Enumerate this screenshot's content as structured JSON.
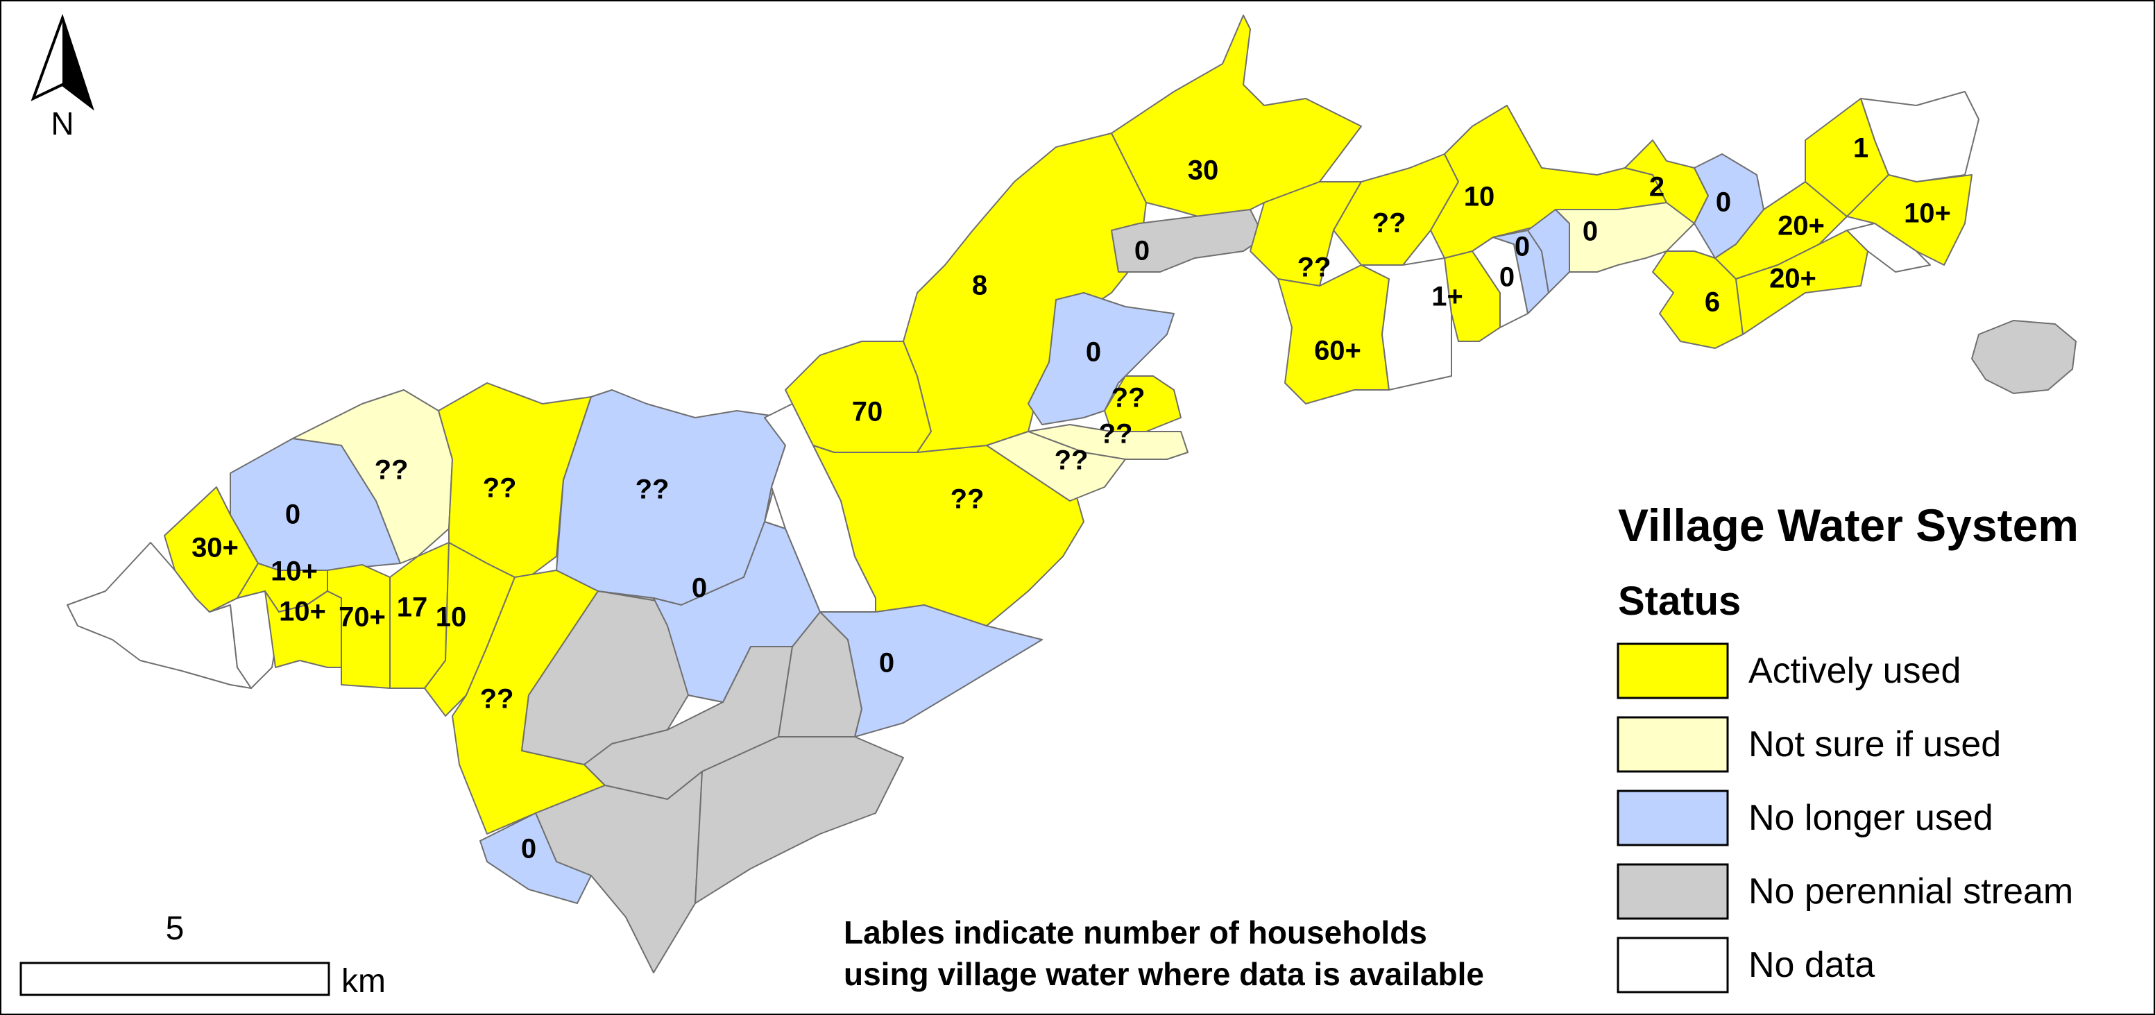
{
  "legend": {
    "title": "Village Water System",
    "subtitle": "Status",
    "items": [
      {
        "label": "Actively used",
        "color": "#ffff00"
      },
      {
        "label": "Not sure if used",
        "color": "#ffffc8"
      },
      {
        "label": "No longer used",
        "color": "#bed2ff"
      },
      {
        "label": "No perennial stream",
        "color": "#cccccc"
      },
      {
        "label": "No data",
        "color": "#ffffff"
      }
    ]
  },
  "note": {
    "line1": "Lables indicate number of households",
    "line2": "using village water where data is available"
  },
  "scale_bar": {
    "value": "5",
    "unit": "km"
  },
  "north_arrow": {
    "label": "N",
    "icon": "north-arrow-icon"
  },
  "village_labels": [
    "30",
    "??",
    "0",
    "10",
    "2",
    "0",
    "1",
    "20+",
    "10+",
    "8",
    "0",
    "??",
    "??",
    "0",
    "0",
    "1+",
    "60+",
    "??",
    "6",
    "20+",
    "0",
    "??",
    "70",
    "??",
    "??",
    "??",
    "??",
    "0",
    "0",
    "30+",
    "0",
    "10+",
    "10+",
    "70+",
    "17",
    "10",
    "??",
    "0",
    "0"
  ]
}
